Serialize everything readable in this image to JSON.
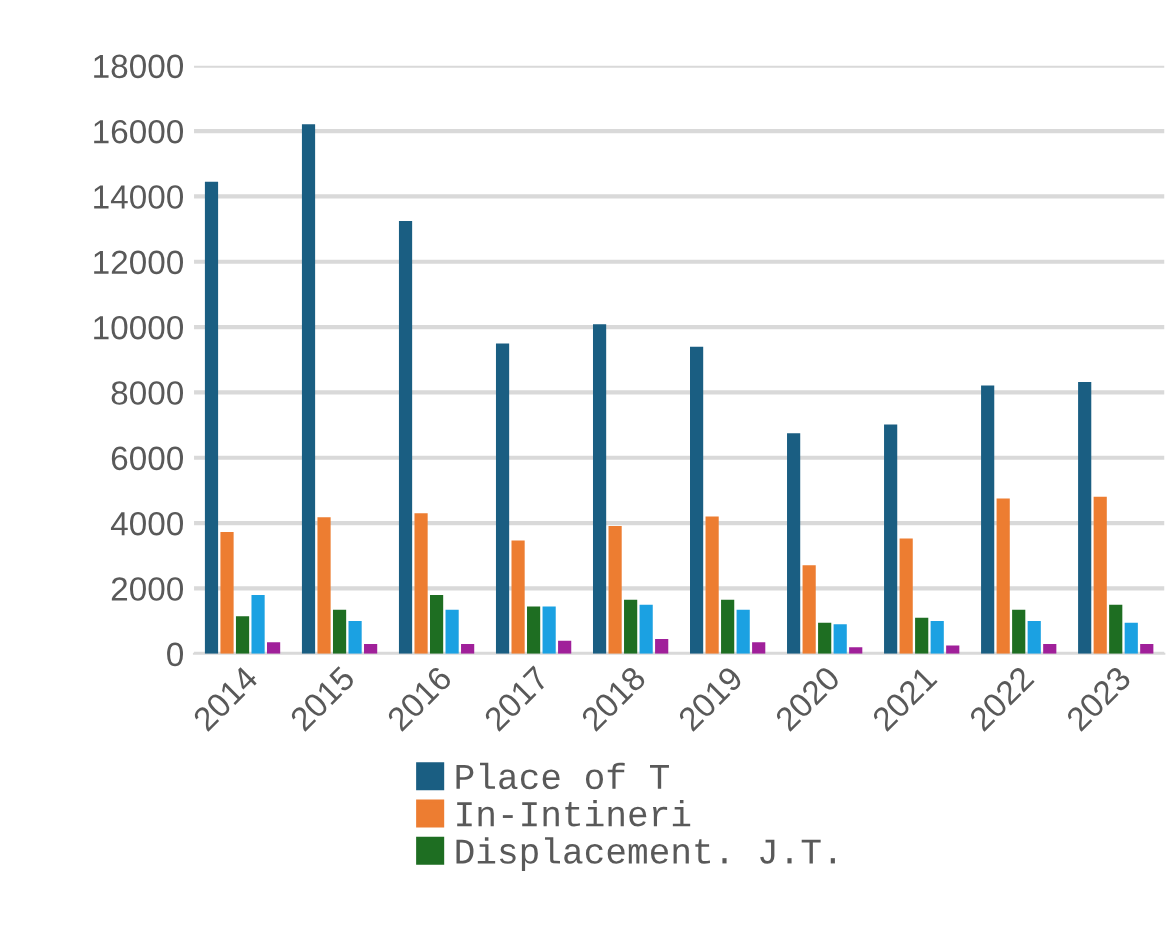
{
  "chart_data": {
    "type": "bar",
    "categories": [
      "2014",
      "2015",
      "2016",
      "2017",
      "2018",
      "2019",
      "2020",
      "2021",
      "2022",
      "2023"
    ],
    "series": [
      {
        "name": "Place of T",
        "color": "#1a5e82",
        "values": [
          14450,
          16210,
          13250,
          9500,
          10090,
          9400,
          6750,
          7020,
          8210,
          8320
        ]
      },
      {
        "name": "In-Intineri",
        "color": "#ed7d31",
        "values": [
          3730,
          4180,
          4300,
          3470,
          3910,
          4200,
          2710,
          3530,
          4750,
          4810
        ]
      },
      {
        "name": "Displacement. J.T.",
        "color": "#1e6e22",
        "values": [
          1150,
          1350,
          1800,
          1450,
          1650,
          1650,
          950,
          1100,
          1350,
          1500
        ]
      },
      {
        "color": "#1ba1e2",
        "values": [
          1800,
          1000,
          1350,
          1450,
          1500,
          1350,
          900,
          1000,
          1000,
          950
        ]
      },
      {
        "color": "#a0209a",
        "values": [
          350,
          300,
          300,
          400,
          450,
          350,
          200,
          250,
          300,
          300
        ]
      }
    ],
    "ylim": [
      0,
      18000
    ],
    "yticks": [
      0,
      2000,
      4000,
      6000,
      8000,
      10000,
      12000,
      14000,
      16000,
      18000
    ],
    "grid": "y",
    "legend": "bottom"
  }
}
